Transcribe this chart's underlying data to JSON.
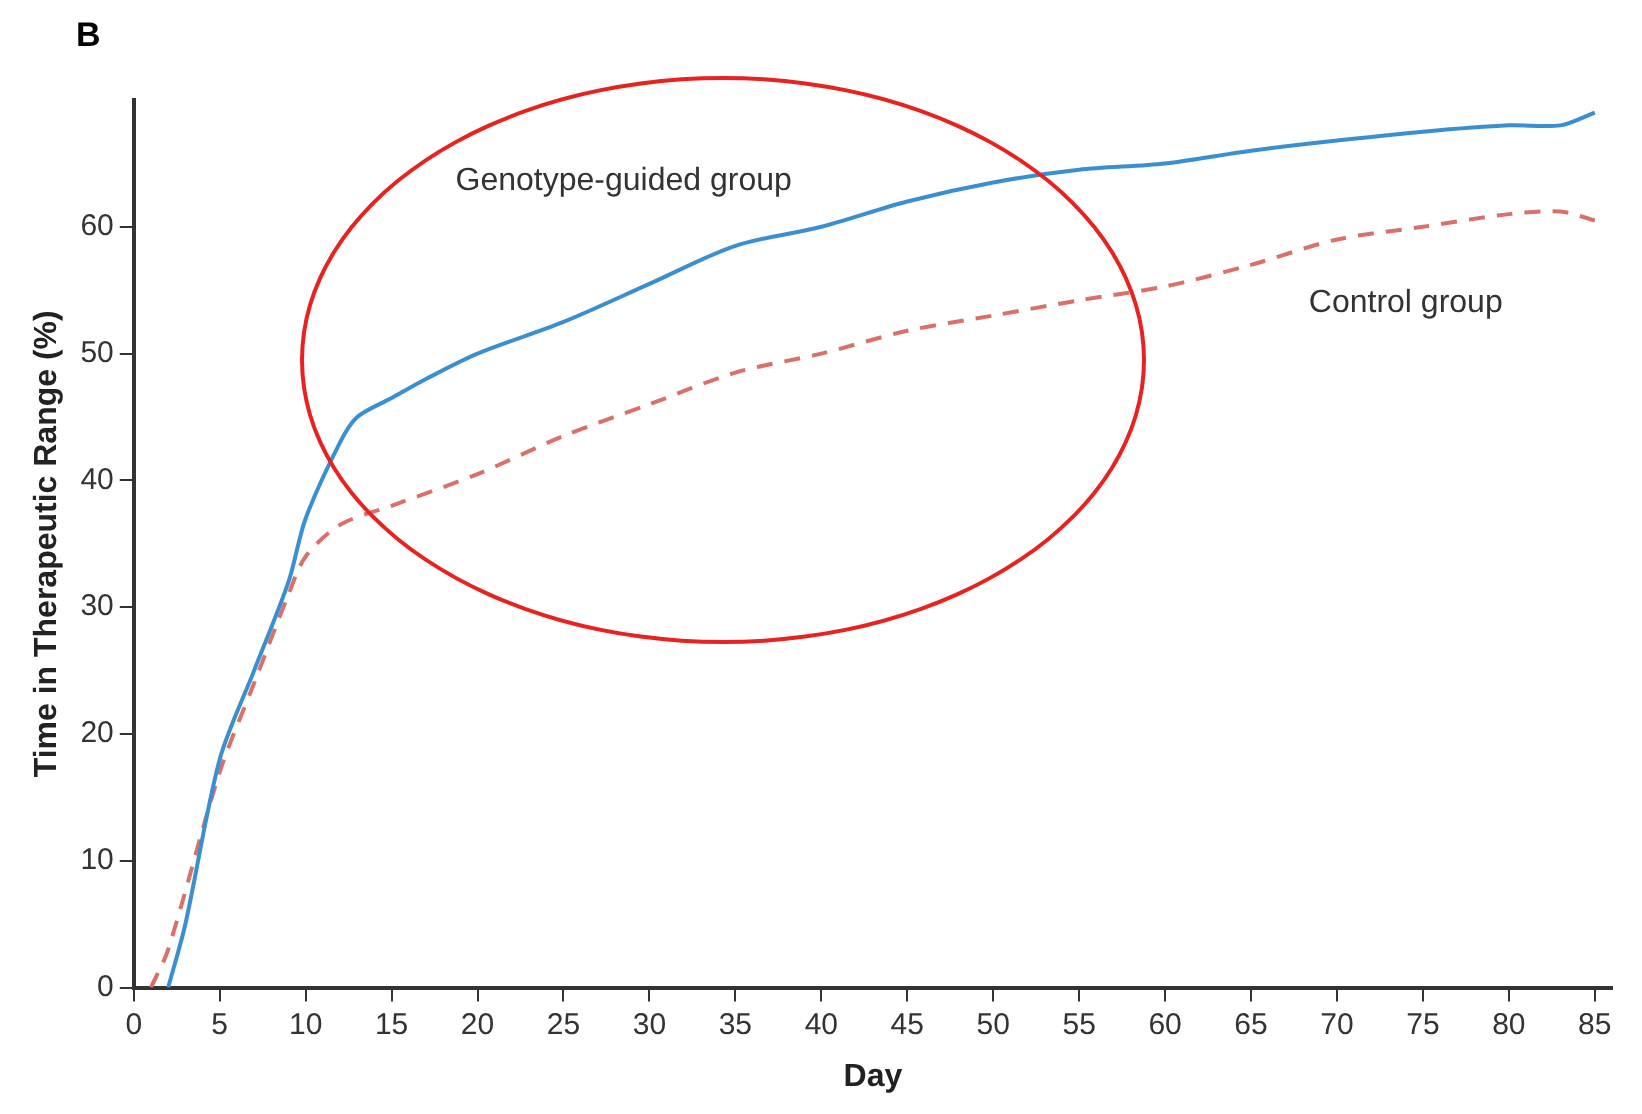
{
  "chart_data": {
    "type": "line",
    "title": "B",
    "xlabel": "Day",
    "ylabel": "Time in Therapeutic Range (%)",
    "xlim": [
      0,
      86
    ],
    "xticks": [
      0,
      5,
      10,
      15,
      20,
      25,
      30,
      35,
      40,
      45,
      50,
      55,
      60,
      65,
      70,
      75,
      80,
      85
    ],
    "ylim": [
      0,
      70
    ],
    "yticks": [
      0,
      10,
      20,
      30,
      40,
      50,
      60
    ],
    "grid": false,
    "legend": false,
    "marker": "none",
    "series": [
      {
        "name": "Genotype-guided group",
        "color": "#3a8fd0",
        "line_style": "solid",
        "x": [
          2,
          3,
          5,
          7,
          9,
          10,
          12,
          13,
          15,
          17,
          20,
          25,
          30,
          35,
          40,
          45,
          50,
          55,
          60,
          65,
          70,
          75,
          80,
          83,
          85
        ],
        "values": [
          0,
          5,
          18,
          25,
          32,
          37,
          43,
          45,
          46.5,
          48,
          50,
          52.5,
          55.5,
          58.5,
          60,
          62,
          63.5,
          64.5,
          65,
          66,
          66.8,
          67.5,
          68,
          68,
          69
        ]
      },
      {
        "name": "Control group",
        "color": "#d9706a",
        "line_style": "dashed",
        "x": [
          1,
          2,
          5,
          7,
          9,
          10,
          12,
          15,
          20,
          25,
          30,
          35,
          40,
          45,
          50,
          55,
          60,
          65,
          70,
          75,
          80,
          83,
          85
        ],
        "values": [
          0,
          3,
          17,
          24,
          31,
          34,
          36.5,
          38,
          40.5,
          43.5,
          46,
          48.5,
          50,
          51.8,
          53,
          54.2,
          55.3,
          57,
          59,
          60,
          61,
          61.2,
          60.5
        ]
      }
    ]
  }
}
